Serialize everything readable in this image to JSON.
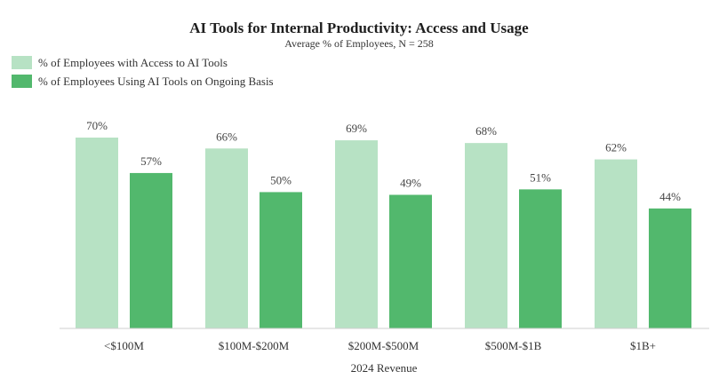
{
  "chart_data": {
    "type": "bar",
    "title": "AI Tools for Internal Productivity: Access and Usage",
    "subtitle": "Average % of Employees, N = 258",
    "xlabel": "2024 Revenue",
    "ylabel": "",
    "categories": [
      "<$100M",
      "$100M-$200M",
      "$200M-$500M",
      "$500M-$1B",
      "$1B+"
    ],
    "series": [
      {
        "name": "% of Employees with Access to AI Tools",
        "values": [
          70,
          66,
          69,
          68,
          62
        ],
        "labels": [
          "70%",
          "66%",
          "69%",
          "68%",
          "62%"
        ],
        "color": "#b7e2c4"
      },
      {
        "name": "% of Employees Using AI Tools on Ongoing Basis",
        "values": [
          57,
          50,
          49,
          51,
          44
        ],
        "labels": [
          "57%",
          "50%",
          "49%",
          "51%",
          "44%"
        ],
        "color": "#52b86d"
      }
    ],
    "ylim": [
      0,
      70
    ],
    "grid": false,
    "legend_position": "top-left",
    "axis_color": "#cfcfcf"
  }
}
